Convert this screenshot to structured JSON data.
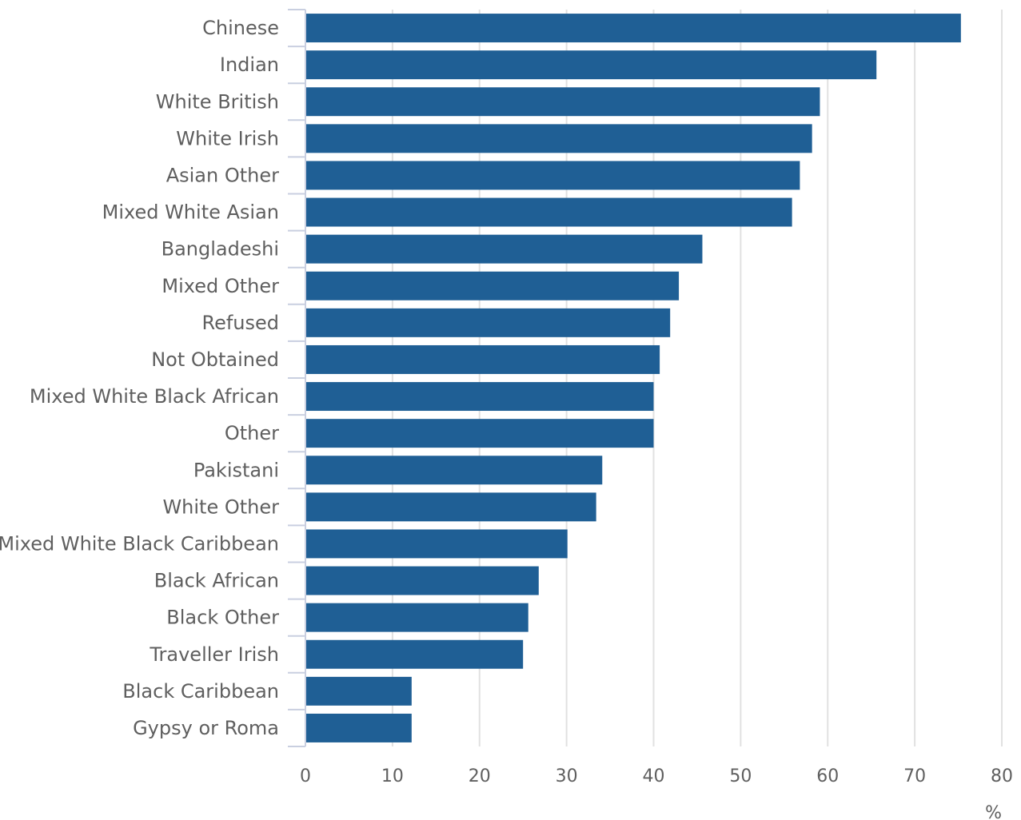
{
  "chart_data": {
    "type": "bar",
    "orientation": "horizontal",
    "title": "",
    "xlabel": "%",
    "ylabel": "",
    "xlim": [
      0,
      80
    ],
    "x_ticks": [
      0,
      10,
      20,
      30,
      40,
      50,
      60,
      70,
      80
    ],
    "grid": true,
    "legend": "none",
    "bar_color": "#1f5f95",
    "grid_color": "#e1e1e1",
    "axis_color": "#c9cfe0",
    "categories": [
      "Chinese",
      "Indian",
      "White British",
      "White Irish",
      "Asian Other",
      "Mixed White Asian",
      "Bangladeshi",
      "Mixed Other",
      "Refused",
      "Not Obtained",
      "Mixed White Black African",
      "Other",
      "Pakistani",
      "White Other",
      "Mixed White Black Caribbean",
      "Black African",
      "Black Other",
      "Traveller Irish",
      "Black Caribbean",
      "Gypsy or Roma"
    ],
    "values": [
      75.3,
      65.6,
      59.1,
      58.2,
      56.8,
      55.9,
      45.6,
      42.9,
      41.9,
      40.7,
      40.0,
      40.0,
      34.1,
      33.4,
      30.1,
      26.8,
      25.6,
      25.0,
      12.2,
      12.2
    ]
  }
}
